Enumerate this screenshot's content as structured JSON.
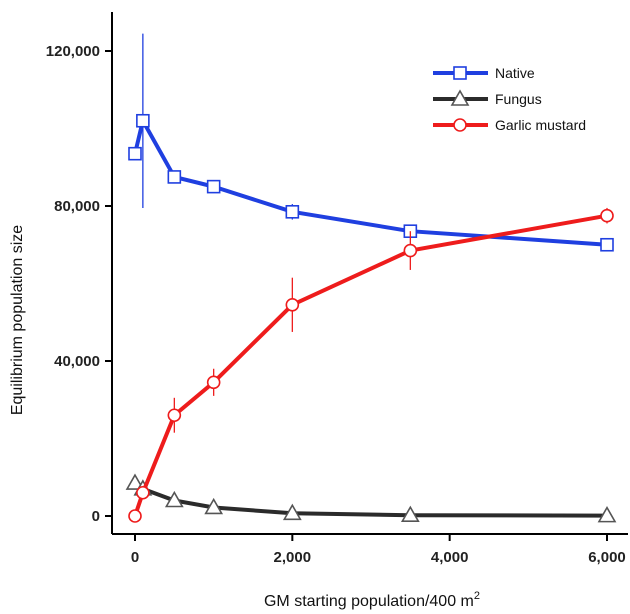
{
  "chart_data": {
    "type": "line",
    "xlabel": "GM starting population/400 m",
    "xlabel_sup": "2",
    "ylabel": "Equilibrium population size",
    "xlim": [
      -200,
      6200
    ],
    "ylim": [
      -3000,
      130000
    ],
    "x_ticks": [
      0,
      2000,
      4000,
      6000
    ],
    "x_tick_labels": [
      "0",
      "2,000",
      "4,000",
      "6,000"
    ],
    "y_ticks": [
      0,
      40000,
      80000,
      120000
    ],
    "y_tick_labels": [
      "0",
      "40,000",
      "80,000",
      "120,000"
    ],
    "grid": false,
    "legend_position": "top-right",
    "series": [
      {
        "name": "Native",
        "color": "#1f3fe0",
        "marker": "square",
        "x": [
          0,
          100,
          500,
          1000,
          2000,
          3500,
          6000
        ],
        "y": [
          93500,
          102000,
          87500,
          85000,
          78500,
          73500,
          70000
        ],
        "err": [
          0,
          22500,
          1500,
          1500,
          2000,
          1500,
          1000
        ]
      },
      {
        "name": "Fungus",
        "color": "#2b2b2b",
        "marker": "triangle",
        "x": [
          0,
          100,
          500,
          1000,
          2000,
          3500,
          6000
        ],
        "y": [
          8500,
          7000,
          4000,
          2200,
          700,
          200,
          100
        ],
        "err": [
          0,
          0,
          0,
          0,
          0,
          0,
          0
        ]
      },
      {
        "name": "Garlic mustard",
        "color": "#ee1c1c",
        "marker": "circle",
        "x": [
          0,
          100,
          500,
          1000,
          2000,
          3500,
          6000
        ],
        "y": [
          0,
          6000,
          26000,
          34500,
          54500,
          68500,
          77500
        ],
        "err": [
          0,
          1500,
          4500,
          3500,
          7000,
          5000,
          2000
        ]
      }
    ]
  }
}
